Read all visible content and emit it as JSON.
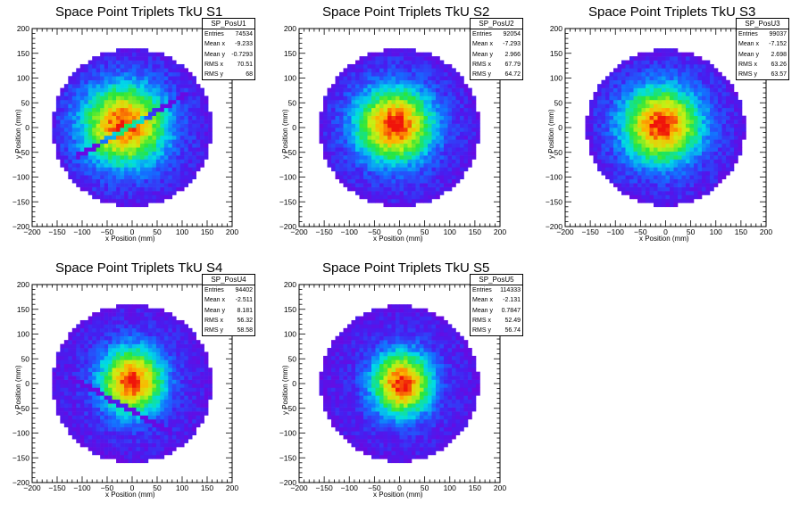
{
  "panels": [
    {
      "title": "Space Point Triplets TkU S1",
      "xlabel": "x Position (mm)",
      "ylabel": "y Position (mm)",
      "stats": {
        "name": "SP_PosU1",
        "rows": [
          {
            "label": "Entries",
            "value": "74534"
          },
          {
            "label": "Mean x",
            "value": "-9.233"
          },
          {
            "label": "Mean y",
            "value": "-0.7293"
          },
          {
            "label": "RMS x",
            "value": "70.51"
          },
          {
            "label": "RMS y",
            "value": "68"
          }
        ]
      }
    },
    {
      "title": "Space Point Triplets TkU S2",
      "xlabel": "x Position (mm)",
      "ylabel": "y Position (mm)",
      "stats": {
        "name": "SP_PosU2",
        "rows": [
          {
            "label": "Entries",
            "value": "92054"
          },
          {
            "label": "Mean x",
            "value": "-7.293"
          },
          {
            "label": "Mean y",
            "value": "2.966"
          },
          {
            "label": "RMS x",
            "value": "67.79"
          },
          {
            "label": "RMS y",
            "value": "64.72"
          }
        ]
      }
    },
    {
      "title": "Space Point Triplets TkU S3",
      "xlabel": "x Position (mm)",
      "ylabel": "y Position (mm)",
      "stats": {
        "name": "SP_PosU3",
        "rows": [
          {
            "label": "Entries",
            "value": "99037"
          },
          {
            "label": "Mean x",
            "value": "-7.152"
          },
          {
            "label": "Mean y",
            "value": "2.698"
          },
          {
            "label": "RMS x",
            "value": "63.26"
          },
          {
            "label": "RMS y",
            "value": "63.57"
          }
        ]
      }
    },
    {
      "title": "Space Point Triplets TkU S4",
      "xlabel": "x Position (mm)",
      "ylabel": "y Position (mm)",
      "stats": {
        "name": "SP_PosU4",
        "rows": [
          {
            "label": "Entries",
            "value": "94402"
          },
          {
            "label": "Mean x",
            "value": "-2.511"
          },
          {
            "label": "Mean y",
            "value": "8.181"
          },
          {
            "label": "RMS x",
            "value": "56.32"
          },
          {
            "label": "RMS y",
            "value": "58.58"
          }
        ]
      }
    },
    {
      "title": "Space Point Triplets TkU S5",
      "xlabel": "x Position (mm)",
      "ylabel": "y Position (mm)",
      "stats": {
        "name": "SP_PosU5",
        "rows": [
          {
            "label": "Entries",
            "value": "114333"
          },
          {
            "label": "Mean x",
            "value": "-2.131"
          },
          {
            "label": "Mean y",
            "value": "0.7847"
          },
          {
            "label": "RMS x",
            "value": "52.49"
          },
          {
            "label": "RMS y",
            "value": "56.74"
          }
        ]
      }
    }
  ],
  "chart_data": [
    {
      "type": "heatmap",
      "title": "Space Point Triplets TkU S1",
      "xlabel": "x Position (mm)",
      "ylabel": "y Position (mm)",
      "xlim": [
        -200,
        200
      ],
      "ylim": [
        -200,
        200
      ],
      "xticks": [
        -200,
        -150,
        -100,
        -50,
        0,
        50,
        100,
        150,
        200
      ],
      "yticks": [
        -200,
        -150,
        -100,
        -50,
        0,
        50,
        100,
        150,
        200
      ],
      "center": [
        -15,
        5
      ],
      "sigma": [
        60,
        58
      ],
      "radius": 160,
      "gap_line": {
        "slope": 0.58,
        "intercept": 5
      },
      "colormap": "rainbow",
      "grid": false
    },
    {
      "type": "heatmap",
      "title": "Space Point Triplets TkU S2",
      "xlabel": "x Position (mm)",
      "ylabel": "y Position (mm)",
      "xlim": [
        -200,
        200
      ],
      "ylim": [
        -200,
        200
      ],
      "xticks": [
        -200,
        -150,
        -100,
        -50,
        0,
        50,
        100,
        150,
        200
      ],
      "yticks": [
        -200,
        -150,
        -100,
        -50,
        0,
        50,
        100,
        150,
        200
      ],
      "center": [
        -10,
        5
      ],
      "sigma": [
        55,
        54
      ],
      "radius": 160,
      "colormap": "rainbow",
      "grid": false
    },
    {
      "type": "heatmap",
      "title": "Space Point Triplets TkU S3",
      "xlabel": "x Position (mm)",
      "ylabel": "y Position (mm)",
      "xlim": [
        -200,
        200
      ],
      "ylim": [
        -200,
        200
      ],
      "xticks": [
        -200,
        -150,
        -100,
        -50,
        0,
        50,
        100,
        150,
        200
      ],
      "yticks": [
        -200,
        -150,
        -100,
        -50,
        0,
        50,
        100,
        150,
        200
      ],
      "center": [
        -8,
        5
      ],
      "sigma": [
        56,
        55
      ],
      "radius": 158,
      "colormap": "rainbow",
      "grid": false
    },
    {
      "type": "heatmap",
      "title": "Space Point Triplets TkU S4",
      "xlabel": "x Position (mm)",
      "ylabel": "y Position (mm)",
      "xlim": [
        -200,
        200
      ],
      "ylim": [
        -200,
        200
      ],
      "xticks": [
        -200,
        -150,
        -100,
        -50,
        0,
        50,
        100,
        150,
        200
      ],
      "yticks": [
        -200,
        -150,
        -100,
        -50,
        0,
        50,
        100,
        150,
        200
      ],
      "center": [
        0,
        5
      ],
      "sigma": [
        45,
        48
      ],
      "radius": 160,
      "gap_line": {
        "slope": -0.55,
        "intercept": -55
      },
      "colormap": "rainbow",
      "grid": false
    },
    {
      "type": "heatmap",
      "title": "Space Point Triplets TkU S5",
      "xlabel": "x Position (mm)",
      "ylabel": "y Position (mm)",
      "xlim": [
        -200,
        200
      ],
      "ylim": [
        -200,
        200
      ],
      "xticks": [
        -200,
        -150,
        -100,
        -50,
        0,
        50,
        100,
        150,
        200
      ],
      "yticks": [
        -200,
        -150,
        -100,
        -50,
        0,
        50,
        100,
        150,
        200
      ],
      "center": [
        5,
        0
      ],
      "sigma": [
        42,
        46
      ],
      "radius": 158,
      "colormap": "rainbow",
      "grid": false
    }
  ]
}
